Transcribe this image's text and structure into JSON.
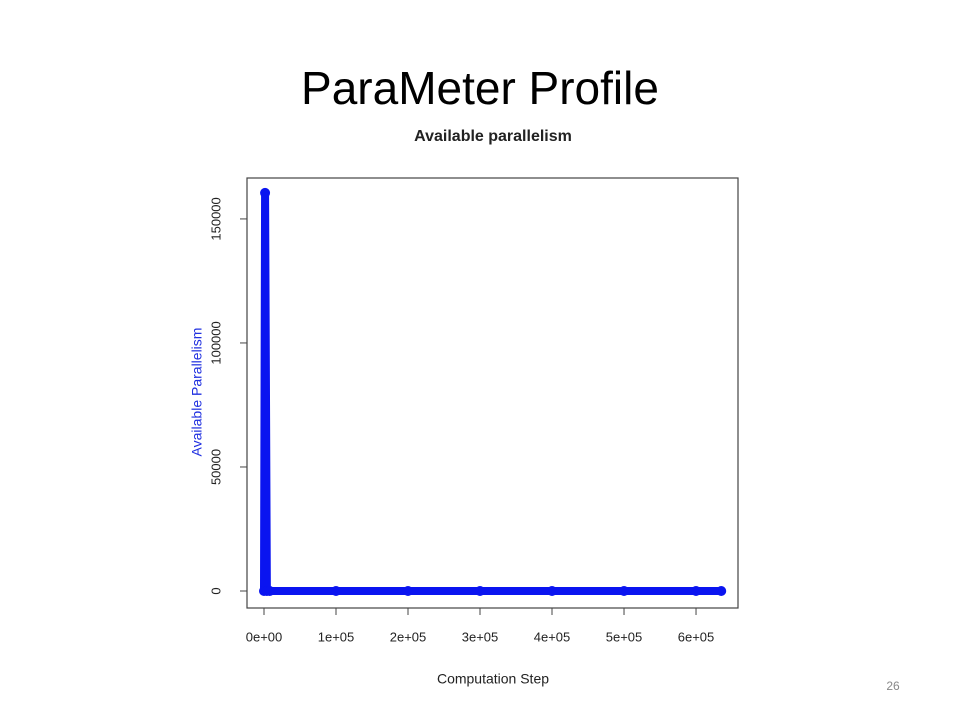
{
  "slide": {
    "title": "ParaMeter Profile",
    "page_number": "26"
  },
  "chart_data": {
    "type": "line",
    "title": "Available parallelism",
    "x_label": "Computation Step",
    "y_label": "Available Parallelism",
    "x": [
      0,
      1500,
      4000,
      8000,
      100000,
      200000,
      300000,
      400000,
      500000,
      600000,
      635000
    ],
    "values": [
      0,
      160500,
      0,
      0,
      0,
      0,
      0,
      0,
      0,
      0,
      0
    ],
    "color": "#0a14f0",
    "xlim": [
      -23600,
      658300
    ],
    "ylim": [
      -6850,
      166500
    ],
    "xticks": [
      {
        "value": 0,
        "label": "0e+00"
      },
      {
        "value": 100000,
        "label": "1e+05"
      },
      {
        "value": 200000,
        "label": "2e+05"
      },
      {
        "value": 300000,
        "label": "3e+05"
      },
      {
        "value": 400000,
        "label": "4e+05"
      },
      {
        "value": 500000,
        "label": "5e+05"
      },
      {
        "value": 600000,
        "label": "6e+05"
      }
    ],
    "yticks": [
      0,
      50000,
      100000,
      150000
    ]
  }
}
